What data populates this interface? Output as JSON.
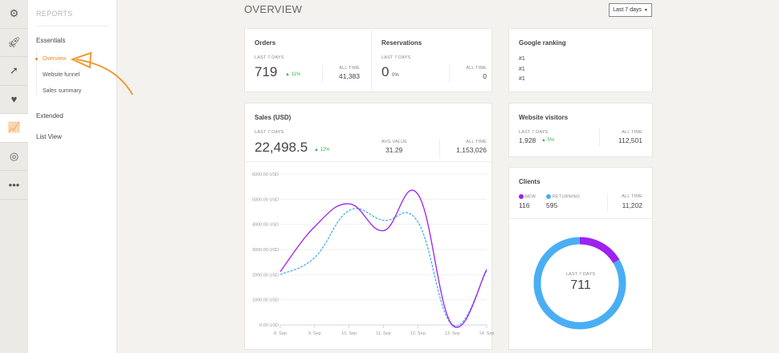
{
  "rail": [
    {
      "icon": "gears-icon"
    },
    {
      "icon": "rocket-icon"
    },
    {
      "icon": "arrow-circle-icon"
    },
    {
      "icon": "heart-pulse-icon"
    },
    {
      "icon": "chart-line-icon",
      "active": true
    },
    {
      "icon": "target-icon"
    },
    {
      "icon": "more-icon"
    }
  ],
  "sidebar": {
    "title": "REPORTS",
    "essentials": "Essentials",
    "items": [
      "Overview",
      "Website funnel",
      "Sales summary"
    ],
    "extended": "Extended",
    "list_view": "List View",
    "active": "Overview"
  },
  "header": {
    "title": "OVERVIEW",
    "range": "Last 7 days"
  },
  "orders": {
    "title": "Orders",
    "period": "LAST 7 DAYS",
    "value": "719",
    "change": "11%",
    "all_time_label": "ALL TIME",
    "all_time": "41,383"
  },
  "reservations": {
    "title": "Reservations",
    "period": "LAST 7 DAYS",
    "value": "0",
    "change": "0%",
    "all_time_label": "ALL TIME",
    "all_time": "0"
  },
  "google": {
    "title": "Google ranking",
    "items": [
      "#1",
      "#1",
      "#1"
    ]
  },
  "sales": {
    "title": "Sales (USD)",
    "period": "LAST 7 DAYS",
    "value": "22,498.5",
    "change": "12%",
    "avg_label": "AVG VALUE",
    "avg": "31.29",
    "all_time_label": "ALL TIME",
    "all_time": "1,153,026"
  },
  "visitors": {
    "title": "Website visitors",
    "period": "LAST 7 DAYS",
    "value": "1,928",
    "change": "5%",
    "all_time_label": "ALL TIME",
    "all_time": "112,501"
  },
  "clients": {
    "title": "Clients",
    "new_label": "NEW",
    "new": "116",
    "returning_label": "RETURNING",
    "returning": "595",
    "all_time_label": "ALL TIME",
    "all_time": "11,202",
    "center_label": "LAST 7 DAYS",
    "center": "711",
    "new_color": "#a020f0",
    "returning_color": "#4aaef5"
  },
  "chart_data": {
    "type": "line",
    "categories": [
      "8. Sep",
      "9. Sep",
      "10. Sep",
      "11. Sep",
      "12. Sep",
      "13. Sep",
      "14. Sep"
    ],
    "yticks": [
      "0.00 USD",
      "1000.00 USD",
      "2000.00 USD",
      "3000.00 USD",
      "4000.00 USD",
      "5000.00 USD",
      "6000.00 USD"
    ],
    "ylim": [
      0,
      6000
    ],
    "series": [
      {
        "values": [
          2120,
          3910,
          4820,
          3750,
          5200,
          0,
          2200
        ],
        "color": "#a020f0",
        "dash": false
      },
      {
        "values": [
          2000,
          2680,
          4550,
          4160,
          4100,
          0,
          2150
        ],
        "color": "#4aaef5",
        "dash": true
      }
    ]
  }
}
